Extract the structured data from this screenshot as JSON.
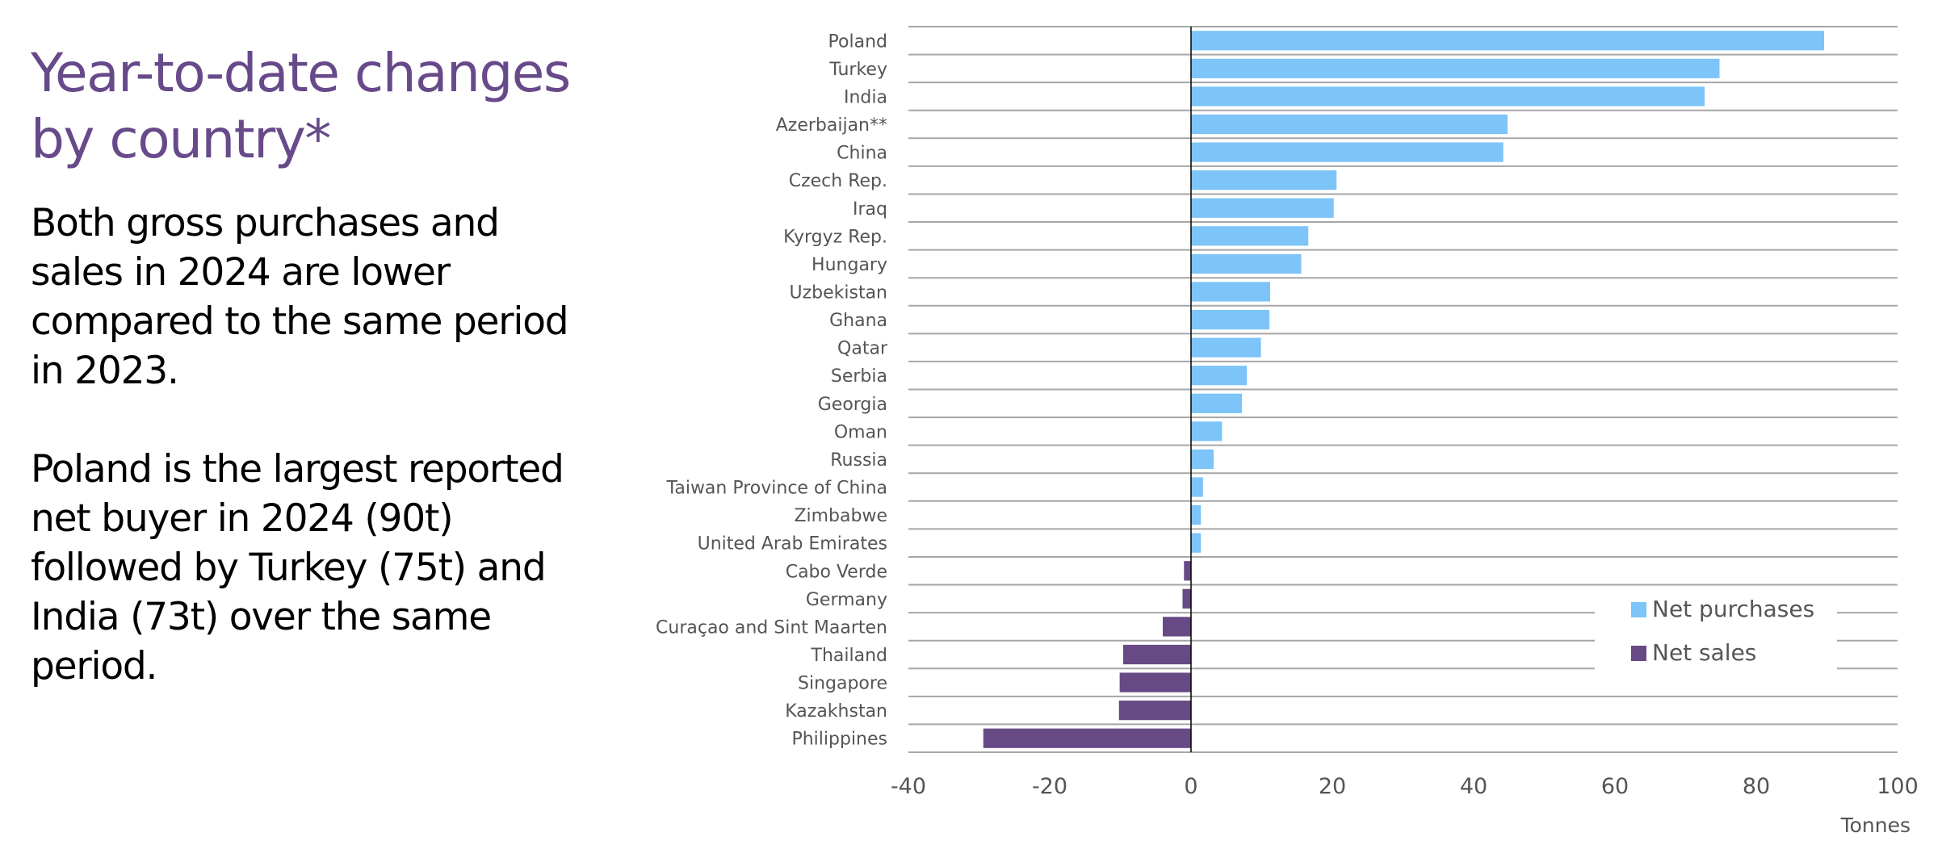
{
  "header": {
    "title_lines": [
      "Year-to-date changes",
      "by country*"
    ]
  },
  "body": {
    "paragraph1_lines": [
      "Both gross purchases and",
      "sales in 2024 are lower",
      "compared to the same period",
      "in 2023."
    ],
    "paragraph2_lines": [
      "Poland is the largest reported",
      "net buyer in 2024 (90t)",
      "followed by Turkey (75t) and",
      "India (73t) over the same",
      "period."
    ]
  },
  "colors": {
    "title": "#674A8A",
    "net_purchases": "#7DC4F8",
    "net_sales": "#674A85",
    "gridline": "#A6A6A6",
    "zero_axis": "#000000",
    "label_text": "#555555"
  },
  "chart_data": {
    "type": "bar",
    "orientation": "horizontal",
    "title": "Year-to-date changes by country*",
    "xlabel": "Tonnes",
    "ylabel": "",
    "xlim": [
      -40,
      100
    ],
    "xticks": [
      -40,
      -20,
      0,
      20,
      40,
      60,
      80,
      100
    ],
    "grid": "horizontal category separators",
    "legend_position": "bottom-right",
    "legend": [
      {
        "name": "Net purchases",
        "color": "#7DC4F8"
      },
      {
        "name": "Net sales",
        "color": "#674A85"
      }
    ],
    "categories": [
      "Poland",
      "Turkey",
      "India",
      "Azerbaijan**",
      "China",
      "Czech Rep.",
      "Iraq",
      "Kyrgyz Rep.",
      "Hungary",
      "Uzbekistan",
      "Ghana",
      "Qatar",
      "Serbia",
      "Georgia",
      "Oman",
      "Russia",
      "Taiwan Province of China",
      "Zimbabwe",
      "United Arab Emirates",
      "Cabo Verde",
      "Germany",
      "Curaçao and Sint Maarten",
      "Thailand",
      "Singapore",
      "Kazakhstan",
      "Philippines"
    ],
    "values": [
      89.6,
      74.8,
      72.7,
      44.8,
      44.2,
      20.6,
      20.2,
      16.6,
      15.6,
      11.2,
      11.1,
      9.9,
      7.9,
      7.2,
      4.4,
      3.2,
      1.7,
      1.4,
      1.4,
      -1.0,
      -1.2,
      -4.0,
      -9.6,
      -10.1,
      -10.2,
      -29.4
    ]
  }
}
